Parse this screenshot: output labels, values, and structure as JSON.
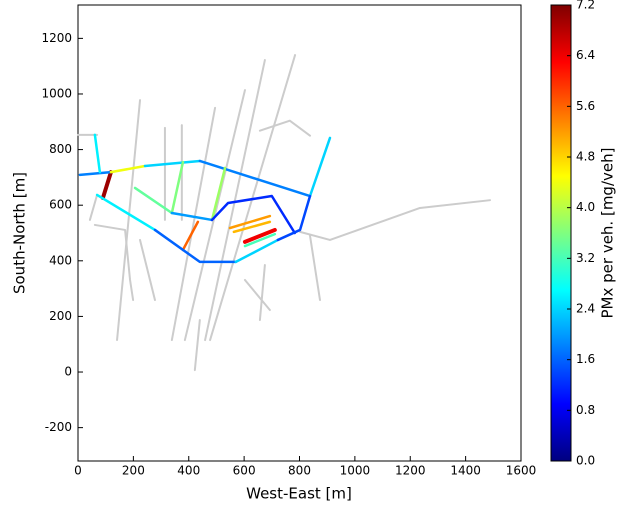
{
  "chart_data": {
    "type": "network",
    "x_label": "West-East [m]",
    "y_label": "South-North [m]",
    "xlim": [
      0,
      1600
    ],
    "ylim": [
      -320,
      1320
    ],
    "xticks": [
      0,
      200,
      400,
      600,
      800,
      1000,
      1200,
      1400,
      1600
    ],
    "yticks": [
      -200,
      0,
      200,
      400,
      600,
      800,
      1000,
      1200
    ],
    "colorbar_label": "PMx per veh. [mg/veh]",
    "clim": [
      0,
      7.2
    ],
    "colorbar_ticks": [
      {
        "value": 0,
        "label": "0.0"
      },
      0.8,
      1.6,
      2.4,
      3.2,
      {
        "value": 4,
        "label": "4.0"
      },
      4.8,
      5.6,
      6.4,
      7.2
    ],
    "colormap": "jet",
    "road_color": "#cccccc",
    "roads": [
      {
        "x": [
          0,
          69
        ],
        "y": [
          853,
          853
        ]
      },
      {
        "x": [
          43,
          69
        ],
        "y": [
          547,
          637
        ]
      },
      {
        "x": [
          141,
          224
        ],
        "y": [
          115,
          978
        ]
      },
      {
        "x": [
          314,
          314
        ],
        "y": [
          878,
          547
        ]
      },
      {
        "x": [
          375,
          375
        ],
        "y": [
          888,
          547
        ]
      },
      {
        "x": [
          339,
          495
        ],
        "y": [
          115,
          950
        ]
      },
      {
        "x": [
          386,
          603
        ],
        "y": [
          115,
          1014
        ]
      },
      {
        "x": [
          459,
          675
        ],
        "y": [
          115,
          1122
        ]
      },
      {
        "x": [
          477,
          784
        ],
        "y": [
          115,
          1140
        ]
      },
      {
        "x": [
          1488,
          1235,
          910,
          802
        ],
        "y": [
          618,
          590,
          475,
          504
        ]
      },
      {
        "x": [
          838,
          874
        ],
        "y": [
          490,
          259
        ]
      },
      {
        "x": [
          657,
          765,
          838
        ],
        "y": [
          868,
          904,
          850
        ]
      },
      {
        "x": [
          440,
          422
        ],
        "y": [
          187,
          7
        ]
      },
      {
        "x": [
          61,
          170,
          188,
          199
        ],
        "y": [
          529,
          511,
          331,
          259
        ]
      },
      {
        "x": [
          224,
          278
        ],
        "y": [
          475,
          259
        ]
      },
      {
        "x": [
          603,
          693
        ],
        "y": [
          331,
          223
        ]
      },
      {
        "x": [
          675,
          657
        ],
        "y": [
          385,
          187
        ]
      }
    ],
    "edges": [
      {
        "x": [
          90,
          119
        ],
        "y": [
          626,
          719
        ],
        "value": 7
      },
      {
        "x": [
          7,
          119
        ],
        "y": [
          709,
          719
        ],
        "value": 1.8
      },
      {
        "x": [
          61,
          79
        ],
        "y": [
          853,
          719
        ],
        "value": 2.6
      },
      {
        "x": [
          119,
          242
        ],
        "y": [
          719,
          741
        ],
        "value": 4.4
      },
      {
        "x": [
          242,
          440
        ],
        "y": [
          741,
          759
        ],
        "value": 2.4
      },
      {
        "x": [
          440,
          838
        ],
        "y": [
          759,
          633
        ],
        "value": 1.8
      },
      {
        "x": [
          838,
          910
        ],
        "y": [
          633,
          842
        ],
        "value": 2.4
      },
      {
        "x": [
          379,
          339
        ],
        "y": [
          755,
          572
        ],
        "value": 3.6
      },
      {
        "x": [
          531,
          484
        ],
        "y": [
          734,
          547
        ],
        "value": 3.8
      },
      {
        "x": [
          206,
          339
        ],
        "y": [
          662,
          572
        ],
        "value": 3.4
      },
      {
        "x": [
          69,
          278
        ],
        "y": [
          637,
          511
        ],
        "value": 2.6
      },
      {
        "x": [
          339,
          484
        ],
        "y": [
          572,
          547
        ],
        "value": 2
      },
      {
        "x": [
          433,
          379
        ],
        "y": [
          540,
          439
        ],
        "value": 5.6
      },
      {
        "x": [
          278,
          440,
          570
        ],
        "y": [
          511,
          396,
          396
        ],
        "value": 1.6
      },
      {
        "x": [
          570,
          722
        ],
        "y": [
          396,
          475
        ],
        "value": 2.4
      },
      {
        "x": [
          549,
          693
        ],
        "y": [
          518,
          561
        ],
        "value": 5.2
      },
      {
        "x": [
          563,
          693
        ],
        "y": [
          504,
          540
        ],
        "value": 5
      },
      {
        "x": [
          603,
          711
        ],
        "y": [
          468,
          511
        ],
        "value": 6.4
      },
      {
        "x": [
          603,
          711
        ],
        "y": [
          453,
          496
        ],
        "value": 3.2
      },
      {
        "x": [
          484,
          542,
          700,
          783
        ],
        "y": [
          547,
          608,
          633,
          500
        ],
        "value": 1.2
      },
      {
        "x": [
          722,
          802,
          838
        ],
        "y": [
          475,
          511,
          633
        ],
        "value": 1.4
      }
    ]
  }
}
